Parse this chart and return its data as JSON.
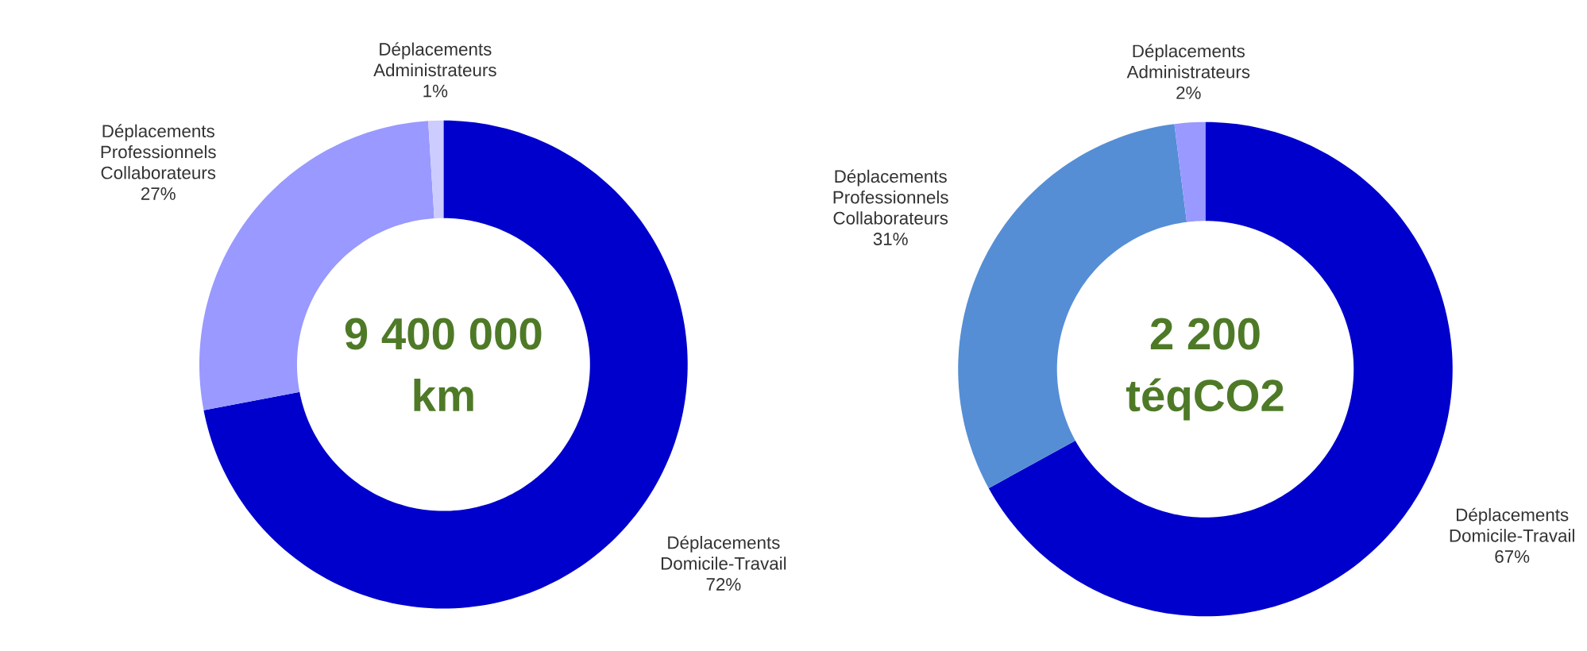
{
  "chart_data": [
    {
      "type": "donut",
      "categories": [
        "Déplacements Domicile-Travail",
        "Déplacements Professionnels Collaborateurs",
        "Déplacements Administrateurs"
      ],
      "values": [
        72,
        27,
        1
      ],
      "colors": [
        "#0000cc",
        "#9999ff",
        "#ccccff"
      ],
      "value_labels": [
        "72%",
        "27%",
        "1%"
      ],
      "annotations": [
        "9 400 000",
        "km"
      ]
    },
    {
      "type": "donut",
      "categories": [
        "Déplacements Domicile-Travail",
        "Déplacements Professionnels Collaborateurs",
        "Déplacements Administrateurs"
      ],
      "values": [
        67,
        31,
        2
      ],
      "colors": [
        "#0000cc",
        "#558ed5",
        "#9999ff"
      ],
      "value_labels": [
        "67%",
        "31%",
        "2%"
      ],
      "annotations": [
        "2 200",
        "téqCO2"
      ]
    }
  ]
}
